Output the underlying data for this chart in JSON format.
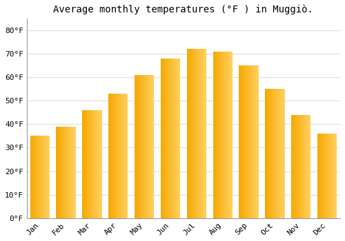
{
  "title": "Average monthly temperatures (°F ) in Muggiò.",
  "months": [
    "Jan",
    "Feb",
    "Mar",
    "Apr",
    "May",
    "Jun",
    "Jul",
    "Aug",
    "Sep",
    "Oct",
    "Nov",
    "Dec"
  ],
  "values": [
    35,
    39,
    46,
    53,
    61,
    68,
    72,
    71,
    65,
    55,
    44,
    36
  ],
  "bar_color_left": "#F5A800",
  "bar_color_right": "#FFD060",
  "ylim": [
    0,
    85
  ],
  "yticks": [
    0,
    10,
    20,
    30,
    40,
    50,
    60,
    70,
    80
  ],
  "ytick_labels": [
    "0°F",
    "10°F",
    "20°F",
    "30°F",
    "40°F",
    "50°F",
    "60°F",
    "70°F",
    "80°F"
  ],
  "background_color": "#FFFFFF",
  "grid_color": "#DDDDDD",
  "title_fontsize": 10,
  "tick_fontsize": 8,
  "font_family": "monospace"
}
